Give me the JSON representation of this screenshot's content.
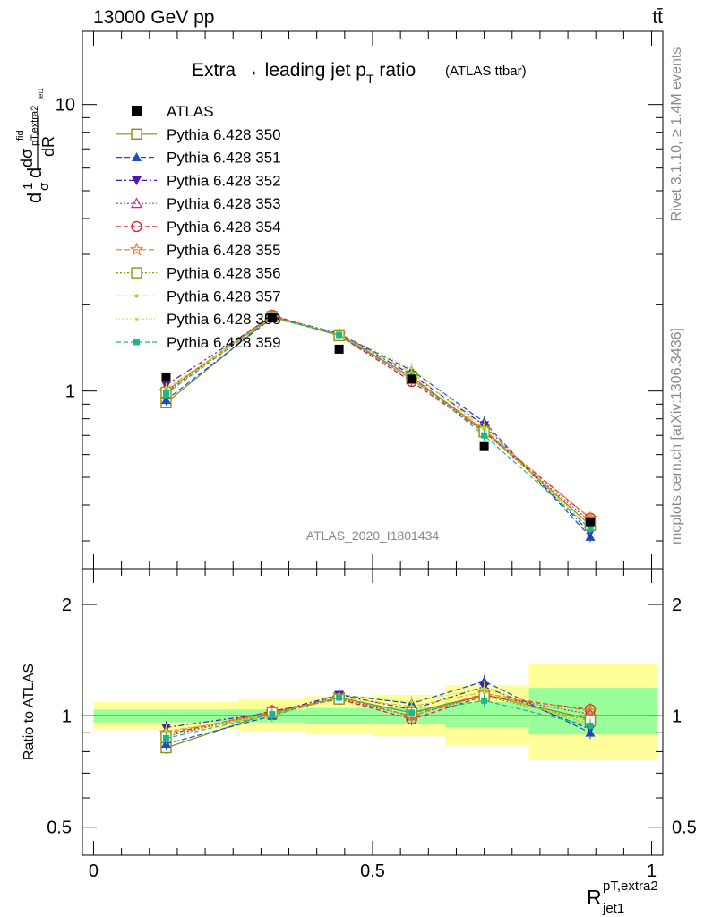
{
  "header": {
    "energy_label": "13000 GeV pp",
    "process_label": "tt̄"
  },
  "side_labels": {
    "rivet": "Rivet 3.1.10, ≥ 1.4M events",
    "mcplots": "mcplots.cern.ch [arXiv:1306.3436]"
  },
  "chart_data": [
    {
      "type": "line",
      "title": "Extra → leading jet p_T ratio",
      "title_main": "Extra → leading jet p",
      "title_sub": "T",
      "title_tail": " ratio",
      "title_note": "(ATLAS ttbar)",
      "watermark": "ATLAS_2020_I1801434",
      "ylabel_parts": {
        "d1": "d",
        "frac1_num": "1",
        "frac1_den": "σ",
        "d2": "d",
        "sigma": "σ",
        "sup": "fid",
        "sub": "pT,extra2",
        "subsub": "jet1",
        "frac2_den": "dR"
      },
      "y_scale": "log",
      "ylim": [
        0.24,
        18
      ],
      "xlim": [
        -0.02,
        1.02
      ],
      "y_ticks": [
        {
          "v": 1,
          "label": "1"
        },
        {
          "v": 10,
          "label": "10"
        }
      ],
      "x": [
        0.13,
        0.32,
        0.44,
        0.57,
        0.7,
        0.89
      ],
      "data": {
        "name": "ATLAS",
        "values": [
          1.12,
          1.8,
          1.4,
          1.1,
          0.64,
          0.35
        ],
        "color": "#000000"
      },
      "series": [
        {
          "name": "Pythia 6.428 350",
          "color": "#8c8c1a",
          "marker": "square-open",
          "dash": "",
          "values": [
            0.91,
            1.82,
            1.57,
            1.12,
            0.73,
            0.34
          ]
        },
        {
          "name": "Pythia 6.428 351",
          "color": "#1a4cc8",
          "marker": "triangle-up",
          "dash": "6,3",
          "values": [
            0.93,
            1.8,
            1.58,
            1.18,
            0.78,
            0.31
          ]
        },
        {
          "name": "Pythia 6.428 352",
          "color": "#4b1ab4",
          "marker": "triangle-down",
          "dash": "6,3,2,3",
          "values": [
            1.05,
            1.82,
            1.59,
            1.14,
            0.76,
            0.32
          ]
        },
        {
          "name": "Pythia 6.428 353",
          "color": "#c82896",
          "marker": "triangle-open",
          "dash": "2,2",
          "values": [
            0.99,
            1.84,
            1.56,
            1.1,
            0.72,
            0.35
          ]
        },
        {
          "name": "Pythia 6.428 354",
          "color": "#d21e28",
          "marker": "circle-open",
          "dash": "5,3",
          "values": [
            1.0,
            1.84,
            1.56,
            1.08,
            0.72,
            0.36
          ]
        },
        {
          "name": "Pythia 6.428 355",
          "color": "#f07828",
          "marker": "star-open",
          "dash": "6,3",
          "values": [
            1.0,
            1.83,
            1.57,
            1.1,
            0.73,
            0.36
          ]
        },
        {
          "name": "Pythia 6.428 356",
          "color": "#8c9614",
          "marker": "square-open",
          "dash": "2,2",
          "values": [
            0.99,
            1.82,
            1.56,
            1.12,
            0.72,
            0.34
          ]
        },
        {
          "name": "Pythia 6.428 357",
          "color": "#d2c31e",
          "marker": "dot",
          "dash": "7,3,2,3",
          "values": [
            1.02,
            1.8,
            1.57,
            1.16,
            0.74,
            0.33
          ]
        },
        {
          "name": "Pythia 6.428 358",
          "color": "#bedc1e",
          "marker": "dot-small",
          "dash": "1,2",
          "values": [
            1.02,
            1.8,
            1.59,
            1.2,
            0.76,
            0.33
          ]
        },
        {
          "name": "Pythia 6.428 359",
          "color": "#1eb48c",
          "marker": "square-filled",
          "dash": "5,3",
          "values": [
            0.98,
            1.81,
            1.57,
            1.12,
            0.7,
            0.33
          ]
        }
      ]
    },
    {
      "type": "line",
      "ylabel": "Ratio to ATLAS",
      "xlabel_main": "R",
      "xlabel_sup": "pT,extra2",
      "xlabel_sub": "jet1",
      "y_scale": "log",
      "ylim": [
        0.42,
        2.5
      ],
      "xlim": [
        -0.02,
        1.02
      ],
      "y_ticks": [
        {
          "v": 0.5,
          "label": "0.5"
        },
        {
          "v": 1,
          "label": "1"
        },
        {
          "v": 2,
          "label": "2"
        }
      ],
      "x_ticks": [
        {
          "v": 0,
          "label": "0"
        },
        {
          "v": 0.5,
          "label": "0.5"
        },
        {
          "v": 1,
          "label": "1"
        }
      ],
      "bins": [
        {
          "lo": 0.0,
          "hi": 0.26,
          "stat_lo": 0.96,
          "stat_hi": 1.04,
          "tot_lo": 0.92,
          "tot_hi": 1.09
        },
        {
          "lo": 0.26,
          "hi": 0.38,
          "stat_lo": 0.96,
          "stat_hi": 1.04,
          "tot_lo": 0.91,
          "tot_hi": 1.11
        },
        {
          "lo": 0.38,
          "hi": 0.5,
          "stat_lo": 0.95,
          "stat_hi": 1.05,
          "tot_lo": 0.89,
          "tot_hi": 1.13
        },
        {
          "lo": 0.5,
          "hi": 0.63,
          "stat_lo": 0.95,
          "stat_hi": 1.06,
          "tot_lo": 0.88,
          "tot_hi": 1.14
        },
        {
          "lo": 0.63,
          "hi": 0.78,
          "stat_lo": 0.93,
          "stat_hi": 1.09,
          "tot_lo": 0.83,
          "tot_hi": 1.21
        },
        {
          "lo": 0.78,
          "hi": 1.01,
          "stat_lo": 0.89,
          "stat_hi": 1.19,
          "tot_lo": 0.76,
          "tot_hi": 1.38
        }
      ],
      "x": [
        0.13,
        0.32,
        0.44,
        0.57,
        0.7,
        0.89
      ],
      "series": [
        {
          "name": "Pythia 6.428 350",
          "color": "#8c8c1a",
          "marker": "square-open",
          "dash": "",
          "values": [
            0.82,
            1.02,
            1.12,
            1.02,
            1.14,
            0.98
          ]
        },
        {
          "name": "Pythia 6.428 351",
          "color": "#1a4cc8",
          "marker": "triangle-up",
          "dash": "6,3",
          "values": [
            0.84,
            1.0,
            1.14,
            1.08,
            1.24,
            0.9
          ]
        },
        {
          "name": "Pythia 6.428 352",
          "color": "#4b1ab4",
          "marker": "triangle-down",
          "dash": "6,3,2,3",
          "values": [
            0.93,
            1.02,
            1.14,
            1.04,
            1.2,
            0.92
          ]
        },
        {
          "name": "Pythia 6.428 353",
          "color": "#c82896",
          "marker": "triangle-open",
          "dash": "2,2",
          "values": [
            0.88,
            1.03,
            1.11,
            1.0,
            1.14,
            1.01
          ]
        },
        {
          "name": "Pythia 6.428 354",
          "color": "#d21e28",
          "marker": "circle-open",
          "dash": "5,3",
          "values": [
            0.89,
            1.03,
            1.11,
            0.98,
            1.13,
            1.04
          ]
        },
        {
          "name": "Pythia 6.428 355",
          "color": "#f07828",
          "marker": "star-open",
          "dash": "6,3",
          "values": [
            0.9,
            1.02,
            1.12,
            1.0,
            1.15,
            1.03
          ]
        },
        {
          "name": "Pythia 6.428 356",
          "color": "#8c9614",
          "marker": "square-open",
          "dash": "2,2",
          "values": [
            0.88,
            1.02,
            1.11,
            1.02,
            1.13,
            0.97
          ]
        },
        {
          "name": "Pythia 6.428 357",
          "color": "#d2c31e",
          "marker": "dot",
          "dash": "7,3,2,3",
          "values": [
            0.91,
            1.0,
            1.12,
            1.06,
            1.16,
            0.95
          ]
        },
        {
          "name": "Pythia 6.428 358",
          "color": "#bedc1e",
          "marker": "dot-small",
          "dash": "1,2",
          "values": [
            0.91,
            1.0,
            1.14,
            1.09,
            1.19,
            0.94
          ]
        },
        {
          "name": "Pythia 6.428 359",
          "color": "#1eb48c",
          "marker": "square-filled",
          "dash": "5,3",
          "values": [
            0.87,
            1.01,
            1.12,
            1.02,
            1.1,
            0.94
          ]
        }
      ]
    }
  ]
}
